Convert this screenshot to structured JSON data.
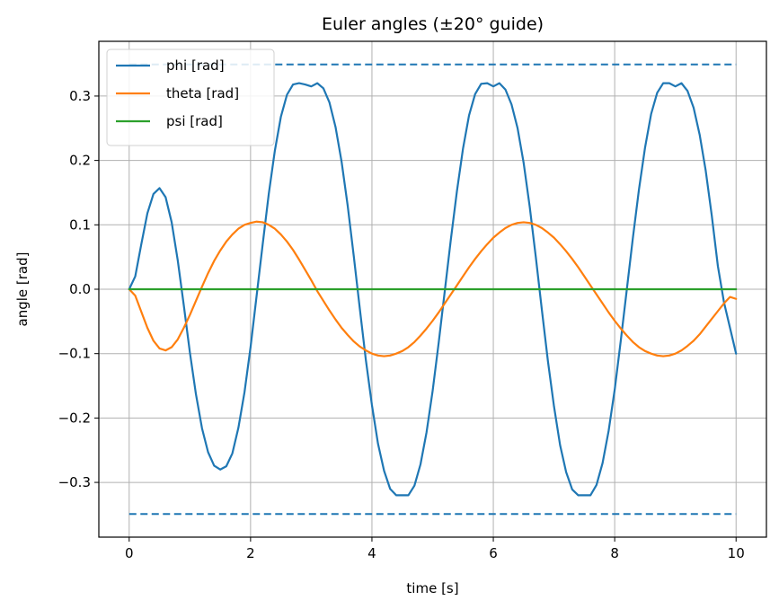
{
  "chart_data": {
    "type": "line",
    "title": "Euler angles (±20° guide)",
    "xlabel": "time [s]",
    "ylabel": "angle [rad]",
    "xlim": [
      -0.5,
      10.5
    ],
    "ylim": [
      -0.385,
      0.385
    ],
    "xticks": [
      0,
      2,
      4,
      6,
      8,
      10
    ],
    "xtick_labels": [
      "0",
      "2",
      "4",
      "6",
      "8",
      "10"
    ],
    "yticks": [
      -0.3,
      -0.2,
      -0.1,
      0.0,
      0.1,
      0.2,
      0.3
    ],
    "ytick_labels": [
      "−0.3",
      "−0.2",
      "−0.1",
      "0.0",
      "0.1",
      "0.2",
      "0.3"
    ],
    "grid": true,
    "legend_position": "top-left",
    "series": [
      {
        "name": "phi [rad]",
        "color": "#1f77b4",
        "x": [
          0,
          0.1,
          0.2,
          0.3,
          0.4,
          0.5,
          0.6,
          0.7,
          0.8,
          0.9,
          1.0,
          1.1,
          1.2,
          1.3,
          1.4,
          1.5,
          1.6,
          1.7,
          1.8,
          1.9,
          2.0,
          2.1,
          2.2,
          2.3,
          2.4,
          2.5,
          2.6,
          2.7,
          2.8,
          2.9,
          3.0,
          3.1,
          3.2,
          3.3,
          3.4,
          3.5,
          3.6,
          3.7,
          3.8,
          3.9,
          4.0,
          4.1,
          4.2,
          4.3,
          4.4,
          4.5,
          4.6,
          4.7,
          4.8,
          4.9,
          5.0,
          5.1,
          5.2,
          5.3,
          5.4,
          5.5,
          5.6,
          5.7,
          5.8,
          5.9,
          6.0,
          6.1,
          6.2,
          6.3,
          6.4,
          6.5,
          6.6,
          6.7,
          6.8,
          6.9,
          7.0,
          7.1,
          7.2,
          7.3,
          7.4,
          7.5,
          7.6,
          7.7,
          7.8,
          7.9,
          8.0,
          8.1,
          8.2,
          8.3,
          8.4,
          8.5,
          8.6,
          8.7,
          8.8,
          8.9,
          9.0,
          9.1,
          9.2,
          9.3,
          9.4,
          9.5,
          9.6,
          9.7,
          9.8,
          9.9,
          10.0
        ],
        "y": [
          0.0,
          0.02,
          0.07,
          0.118,
          0.148,
          0.157,
          0.143,
          0.104,
          0.045,
          -0.025,
          -0.098,
          -0.163,
          -0.216,
          -0.253,
          -0.274,
          -0.28,
          -0.275,
          -0.255,
          -0.215,
          -0.16,
          -0.09,
          -0.01,
          0.07,
          0.148,
          0.215,
          0.268,
          0.302,
          0.318,
          0.32,
          0.318,
          0.315,
          0.32,
          0.312,
          0.29,
          0.252,
          0.198,
          0.13,
          0.052,
          -0.03,
          -0.11,
          -0.18,
          -0.24,
          -0.282,
          -0.31,
          -0.32,
          -0.32,
          -0.32,
          -0.305,
          -0.272,
          -0.222,
          -0.158,
          -0.083,
          -0.003,
          0.077,
          0.152,
          0.218,
          0.27,
          0.303,
          0.319,
          0.32,
          0.315,
          0.32,
          0.31,
          0.287,
          0.25,
          0.196,
          0.128,
          0.05,
          -0.032,
          -0.112,
          -0.182,
          -0.242,
          -0.284,
          -0.311,
          -0.32,
          -0.32,
          -0.32,
          -0.304,
          -0.27,
          -0.22,
          -0.156,
          -0.08,
          0.0,
          0.08,
          0.155,
          0.22,
          0.272,
          0.305,
          0.32,
          0.32,
          0.315,
          0.32,
          0.308,
          0.282,
          0.24,
          0.184,
          0.114,
          0.036,
          -0.02,
          -0.06,
          -0.1
        ]
      },
      {
        "name": "theta [rad]",
        "color": "#ff7f0e",
        "x": [
          0,
          0.1,
          0.2,
          0.3,
          0.4,
          0.5,
          0.6,
          0.7,
          0.8,
          0.9,
          1.0,
          1.1,
          1.2,
          1.3,
          1.4,
          1.5,
          1.6,
          1.7,
          1.8,
          1.9,
          2.0,
          2.1,
          2.2,
          2.3,
          2.4,
          2.5,
          2.6,
          2.7,
          2.8,
          2.9,
          3.0,
          3.1,
          3.2,
          3.3,
          3.4,
          3.5,
          3.6,
          3.7,
          3.8,
          3.9,
          4.0,
          4.1,
          4.2,
          4.3,
          4.4,
          4.5,
          4.6,
          4.7,
          4.8,
          4.9,
          5.0,
          5.1,
          5.2,
          5.3,
          5.4,
          5.5,
          5.6,
          5.7,
          5.8,
          5.9,
          6.0,
          6.1,
          6.2,
          6.3,
          6.4,
          6.5,
          6.6,
          6.7,
          6.8,
          6.9,
          7.0,
          7.1,
          7.2,
          7.3,
          7.4,
          7.5,
          7.6,
          7.7,
          7.8,
          7.9,
          8.0,
          8.1,
          8.2,
          8.3,
          8.4,
          8.5,
          8.6,
          8.7,
          8.8,
          8.9,
          9.0,
          9.1,
          9.2,
          9.3,
          9.4,
          9.5,
          9.6,
          9.7,
          9.8,
          9.9,
          10.0
        ],
        "y": [
          0.0,
          -0.01,
          -0.035,
          -0.06,
          -0.08,
          -0.092,
          -0.095,
          -0.09,
          -0.078,
          -0.06,
          -0.04,
          -0.018,
          0.004,
          0.025,
          0.044,
          0.06,
          0.074,
          0.085,
          0.094,
          0.1,
          0.103,
          0.105,
          0.104,
          0.1,
          0.094,
          0.085,
          0.074,
          0.061,
          0.046,
          0.03,
          0.014,
          -0.003,
          -0.018,
          -0.033,
          -0.047,
          -0.06,
          -0.071,
          -0.081,
          -0.089,
          -0.095,
          -0.1,
          -0.103,
          -0.104,
          -0.103,
          -0.1,
          -0.096,
          -0.09,
          -0.082,
          -0.072,
          -0.061,
          -0.049,
          -0.036,
          -0.022,
          -0.008,
          0.006,
          0.02,
          0.034,
          0.047,
          0.059,
          0.07,
          0.08,
          0.088,
          0.095,
          0.1,
          0.103,
          0.104,
          0.103,
          0.1,
          0.095,
          0.088,
          0.08,
          0.07,
          0.059,
          0.047,
          0.034,
          0.02,
          0.006,
          -0.008,
          -0.022,
          -0.036,
          -0.049,
          -0.061,
          -0.072,
          -0.082,
          -0.09,
          -0.096,
          -0.1,
          -0.103,
          -0.104,
          -0.103,
          -0.1,
          -0.095,
          -0.088,
          -0.08,
          -0.07,
          -0.058,
          -0.046,
          -0.034,
          -0.022,
          -0.012,
          -0.015
        ]
      },
      {
        "name": "psi [rad]",
        "color": "#2ca02c",
        "x": [
          0,
          10
        ],
        "y": [
          0.0,
          0.0
        ]
      }
    ],
    "guides": [
      {
        "y": 0.349,
        "x": [
          0,
          10
        ],
        "color": "#1f77b4",
        "style": "dashed"
      },
      {
        "y": -0.349,
        "x": [
          0,
          10
        ],
        "color": "#1f77b4",
        "style": "dashed"
      }
    ]
  }
}
